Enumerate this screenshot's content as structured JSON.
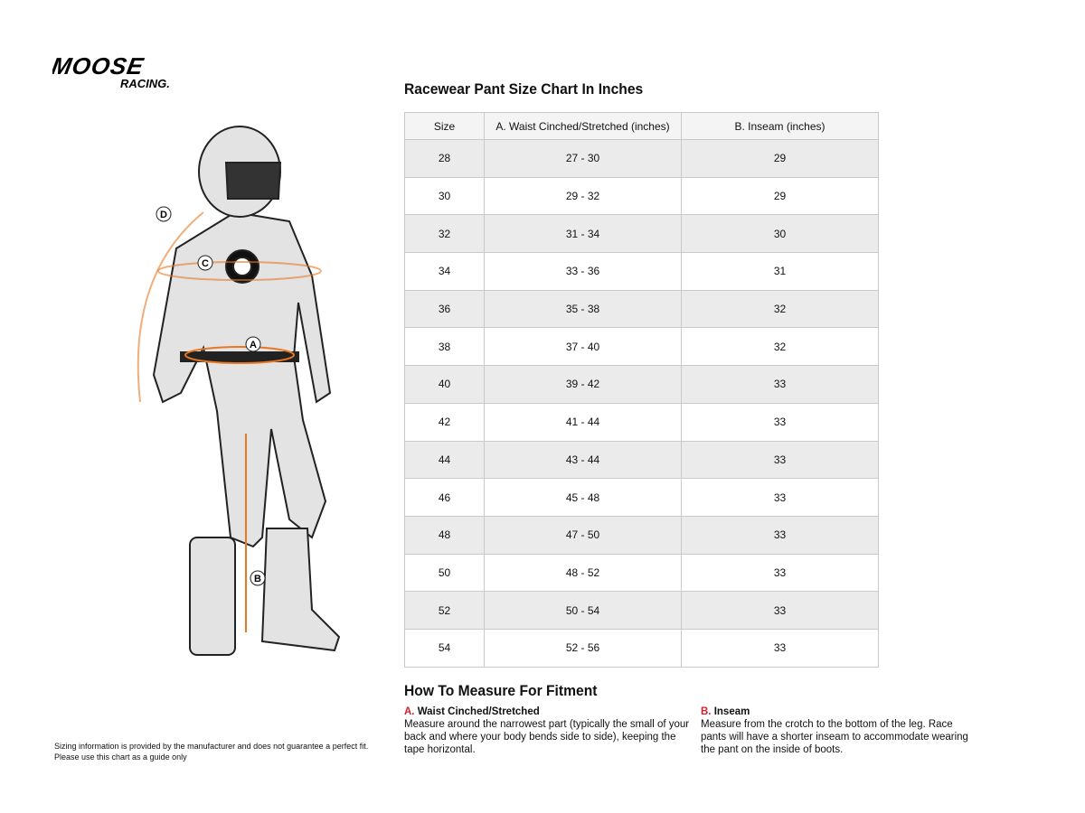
{
  "logo": {
    "text": "MOOSE RACING"
  },
  "title": "Racewear Pant Size Chart In Inches",
  "table": {
    "headers": [
      "Size",
      "A. Waist Cinched/Stretched (inches)",
      "B. Inseam (inches)"
    ],
    "rows": [
      [
        "28",
        "27 - 30",
        "29"
      ],
      [
        "30",
        "29 - 32",
        "29"
      ],
      [
        "32",
        "31 - 34",
        "30"
      ],
      [
        "34",
        "33 - 36",
        "31"
      ],
      [
        "36",
        "35 - 38",
        "32"
      ],
      [
        "38",
        "37 - 40",
        "32"
      ],
      [
        "40",
        "39 - 42",
        "33"
      ],
      [
        "42",
        "41 - 44",
        "33"
      ],
      [
        "44",
        "43 - 44",
        "33"
      ],
      [
        "46",
        "45 - 48",
        "33"
      ],
      [
        "48",
        "47 - 50",
        "33"
      ],
      [
        "50",
        "48 - 52",
        "33"
      ],
      [
        "52",
        "50 - 54",
        "33"
      ],
      [
        "54",
        "52 - 56",
        "33"
      ]
    ]
  },
  "illustration": {
    "markers": [
      "D",
      "C",
      "A",
      "B"
    ],
    "accent": "#e87722"
  },
  "how": {
    "title": "How To Measure For Fitment",
    "a": {
      "letter": "A.",
      "label": "Waist Cinched/Stretched",
      "text": "Measure around the narrowest part (typically the small of your back and where your body bends side to side), keeping the tape horizontal."
    },
    "b": {
      "letter": "B.",
      "label": "Inseam",
      "text": "Measure from the crotch to the bottom of the leg. Race pants will have a shorter inseam to accommodate wearing the pant on the inside of boots."
    }
  },
  "disclaimer": {
    "line1": "Sizing information is provided by the manufacturer and does not guarantee a perfect fit.",
    "line2": "Please use this chart as a guide only"
  }
}
